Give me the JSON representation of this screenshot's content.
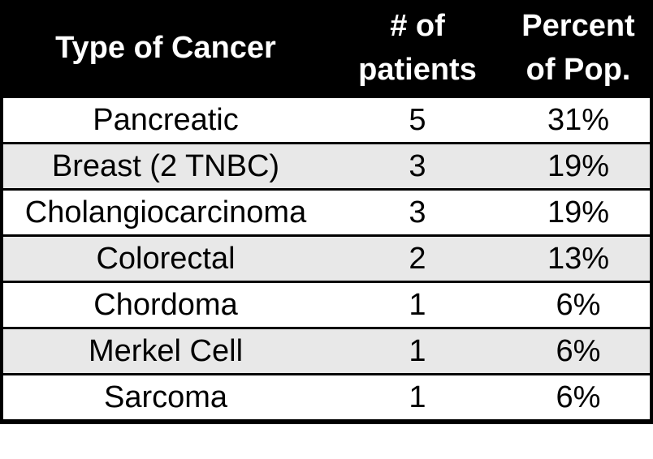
{
  "table": {
    "header": {
      "type": {
        "line1": "Type of Cancer",
        "line2": ""
      },
      "patients": {
        "line1": "# of",
        "line2": "patients"
      },
      "percent": {
        "line1": "Percent",
        "line2": "of Pop."
      }
    },
    "rows": [
      {
        "type": "Pancreatic",
        "patients": "5",
        "percent": "31%"
      },
      {
        "type": "Breast (2 TNBC)",
        "patients": "3",
        "percent": "19%"
      },
      {
        "type": "Cholangiocarcinoma",
        "patients": "3",
        "percent": "19%"
      },
      {
        "type": "Colorectal",
        "patients": "2",
        "percent": "13%"
      },
      {
        "type": "Chordoma",
        "patients": "1",
        "percent": "6%"
      },
      {
        "type": "Merkel Cell",
        "patients": "1",
        "percent": "6%"
      },
      {
        "type": "Sarcoma",
        "patients": "1",
        "percent": "6%"
      }
    ],
    "colors": {
      "header_bg": "#000000",
      "header_text": "#ffffff",
      "row_bg": "#ffffff",
      "row_alt_bg": "#e8e8e8",
      "border": "#000000",
      "body_text": "#000000"
    }
  },
  "chart_data": {
    "type": "table",
    "title": "",
    "columns": [
      "Type of Cancer",
      "# of patients",
      "Percent of Pop."
    ],
    "rows": [
      [
        "Pancreatic",
        5,
        "31%"
      ],
      [
        "Breast (2 TNBC)",
        3,
        "19%"
      ],
      [
        "Cholangiocarcinoma",
        3,
        "19%"
      ],
      [
        "Colorectal",
        2,
        "13%"
      ],
      [
        "Chordoma",
        1,
        "6%"
      ],
      [
        "Merkel Cell",
        1,
        "6%"
      ],
      [
        "Sarcoma",
        1,
        "6%"
      ]
    ],
    "layout_hints": {
      "header_style": "black background, bold white text",
      "row_striping": "alternating light gray and white, starting gray",
      "borders": "black horizontal row dividers, thick black outer border"
    }
  }
}
